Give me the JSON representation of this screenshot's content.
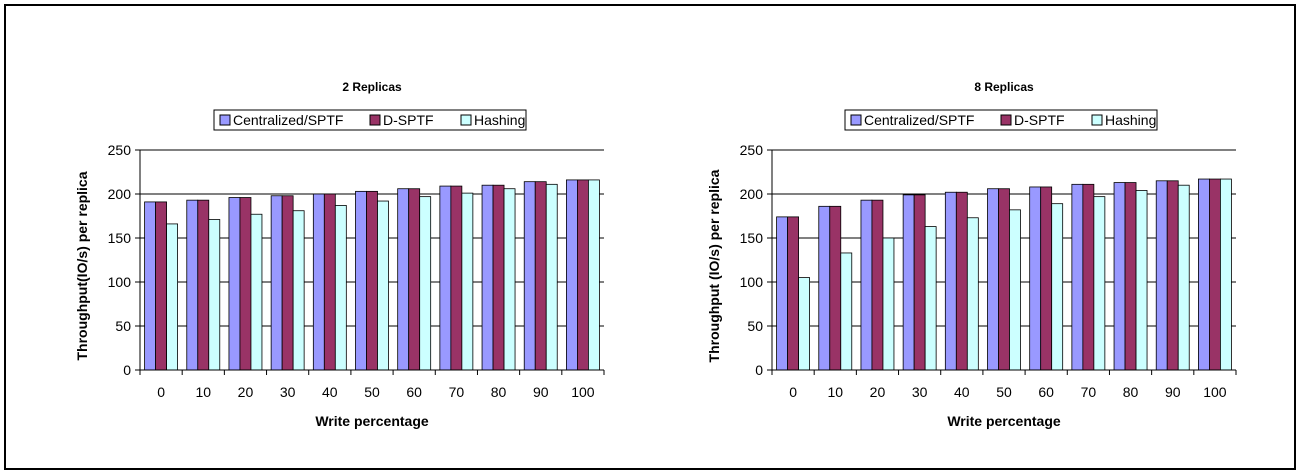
{
  "colors": {
    "series": [
      "#9999ff",
      "#993366",
      "#ccffff"
    ],
    "grid": "#000000",
    "plot_bg": "#ffffff"
  },
  "chart_data": [
    {
      "type": "bar",
      "title": "2 Replicas",
      "xlabel": "Write percentage",
      "ylabel": "Throughput(IO/s) per replica",
      "categories": [
        "0",
        "10",
        "20",
        "30",
        "40",
        "50",
        "60",
        "70",
        "80",
        "90",
        "100"
      ],
      "ylim": [
        0,
        250
      ],
      "yticks": [
        0,
        50,
        100,
        150,
        200,
        250
      ],
      "grid": true,
      "legend_position": "top",
      "series": [
        {
          "name": "Centralized/SPTF",
          "values": [
            191,
            193,
            196,
            198,
            200,
            203,
            206,
            209,
            210,
            214,
            216
          ]
        },
        {
          "name": "D-SPTF",
          "values": [
            191,
            193,
            196,
            198,
            200,
            203,
            206,
            209,
            210,
            214,
            216
          ]
        },
        {
          "name": "Hashing",
          "values": [
            166,
            171,
            177,
            181,
            187,
            192,
            197,
            201,
            206,
            211,
            216
          ]
        }
      ]
    },
    {
      "type": "bar",
      "title": "8 Replicas",
      "xlabel": "Write percentage",
      "ylabel": "Throughput (IO/s) per replica",
      "categories": [
        "0",
        "10",
        "20",
        "30",
        "40",
        "50",
        "60",
        "70",
        "80",
        "90",
        "100"
      ],
      "ylim": [
        0,
        250
      ],
      "yticks": [
        0,
        50,
        100,
        150,
        200,
        250
      ],
      "grid": true,
      "legend_position": "top",
      "series": [
        {
          "name": "Centralized/SPTF",
          "values": [
            174,
            186,
            193,
            199,
            202,
            206,
            208,
            211,
            213,
            215,
            217
          ]
        },
        {
          "name": "D-SPTF",
          "values": [
            174,
            186,
            193,
            199,
            202,
            206,
            208,
            211,
            213,
            215,
            217
          ]
        },
        {
          "name": "Hashing",
          "values": [
            105,
            133,
            150,
            163,
            173,
            182,
            189,
            197,
            204,
            210,
            217
          ]
        }
      ]
    }
  ]
}
